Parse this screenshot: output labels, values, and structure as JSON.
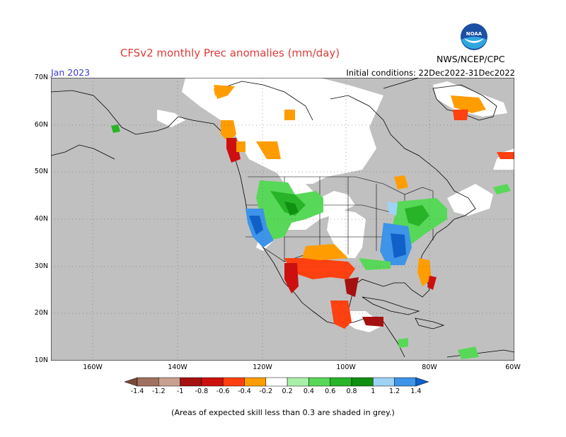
{
  "title": "CFSv2 monthly Prec anomalies (mm/day)",
  "month": "Jan 2023",
  "initial_conditions": "Initial conditions: 22Dec2022-31Dec2022",
  "agency": "NWS/NCEP/CPC",
  "logo_text": "NOAA",
  "lat_labels": [
    "70N",
    "60N",
    "50N",
    "40N",
    "30N",
    "20N",
    "10N"
  ],
  "lon_labels": [
    "160W",
    "140W",
    "120W",
    "100W",
    "80W",
    "60W"
  ],
  "colorbar_labels": [
    "-1.4",
    "-1.2",
    "-1",
    "-0.8",
    "-0.6",
    "-0.4",
    "-0.2",
    "0.2",
    "0.4",
    "0.6",
    "0.8",
    "1",
    "1.2",
    "1.4"
  ],
  "colorbar_colors": [
    "#7b4b3a",
    "#a07060",
    "#c9a090",
    "#a51010",
    "#cc1010",
    "#ff4010",
    "#ff9d00",
    "#ffffff",
    "#a8f0a8",
    "#58d858",
    "#28b428",
    "#109010",
    "#9dd3f5",
    "#3d94e8",
    "#1060c8"
  ],
  "footnote": "(Areas of expected skill less than 0.3 are shaded in grey.)",
  "colors": {
    "grey": "#c0c0c0",
    "title": "#e03a3a",
    "month": "#3a3acd"
  }
}
